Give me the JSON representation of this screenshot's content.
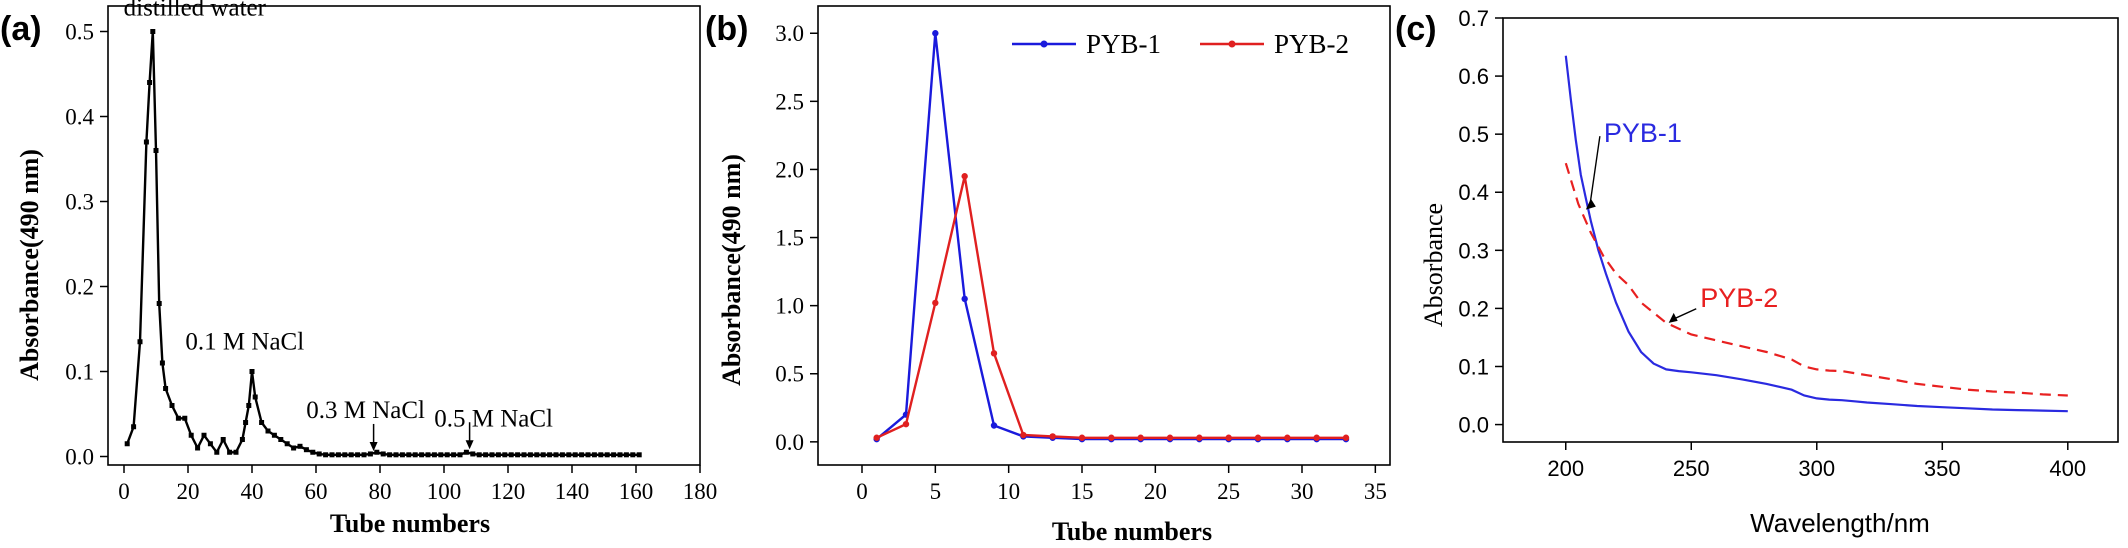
{
  "chart_data": [
    {
      "panel": "(a)",
      "type": "line",
      "xlabel": "Tube numbers",
      "ylabel": "Absorbance(490 nm)",
      "xlim": [
        -5,
        180
      ],
      "ylim": [
        -0.01,
        0.53
      ],
      "xticks": [
        0,
        20,
        40,
        60,
        80,
        100,
        120,
        140,
        160,
        180
      ],
      "yticks": [
        0.0,
        0.1,
        0.2,
        0.3,
        0.4,
        0.5
      ],
      "ytick_labels": [
        "0.0",
        "0.1",
        "0.2",
        "0.3",
        "0.4",
        "0.5"
      ],
      "color": "#000000",
      "series": [
        {
          "x": [
            1,
            3,
            5,
            7,
            8,
            9,
            10,
            11,
            12,
            13,
            15,
            17,
            19,
            21,
            23,
            25,
            27,
            29,
            31,
            33,
            35,
            37,
            38,
            39,
            40,
            41,
            43,
            45,
            47,
            49,
            51,
            53,
            55,
            57,
            59,
            61,
            63,
            65,
            67,
            69,
            71,
            73,
            75,
            77,
            79,
            81,
            83,
            85,
            87,
            89,
            91,
            93,
            95,
            97,
            99,
            101,
            103,
            105,
            107,
            109,
            111,
            113,
            115,
            117,
            119,
            121,
            123,
            125,
            127,
            129,
            131,
            133,
            135,
            137,
            139,
            141,
            143,
            145,
            147,
            149,
            151,
            153,
            155,
            157,
            159,
            161
          ],
          "y": [
            0.015,
            0.035,
            0.135,
            0.37,
            0.44,
            0.5,
            0.36,
            0.18,
            0.11,
            0.08,
            0.06,
            0.045,
            0.045,
            0.025,
            0.01,
            0.025,
            0.015,
            0.005,
            0.02,
            0.005,
            0.005,
            0.02,
            0.04,
            0.06,
            0.1,
            0.07,
            0.04,
            0.03,
            0.025,
            0.02,
            0.015,
            0.01,
            0.012,
            0.008,
            0.005,
            0.003,
            0.002,
            0.002,
            0.002,
            0.002,
            0.002,
            0.002,
            0.002,
            0.003,
            0.005,
            0.003,
            0.002,
            0.002,
            0.002,
            0.002,
            0.002,
            0.002,
            0.002,
            0.002,
            0.002,
            0.002,
            0.002,
            0.002,
            0.005,
            0.003,
            0.002,
            0.002,
            0.002,
            0.002,
            0.002,
            0.002,
            0.002,
            0.002,
            0.002,
            0.002,
            0.002,
            0.002,
            0.002,
            0.002,
            0.002,
            0.002,
            0.002,
            0.002,
            0.002,
            0.002,
            0.002,
            0.002,
            0.002,
            0.002,
            0.002,
            0.002
          ]
        }
      ],
      "annotations": [
        {
          "text": "distilled water",
          "x": 9,
          "y": 0.5
        },
        {
          "text": "0.1 M NaCl",
          "x": 39,
          "y": 0.1
        },
        {
          "text": "0.3 M NaCl",
          "x": 78,
          "y": 0.003
        },
        {
          "text": "0.5 M NaCl",
          "x": 108,
          "y": 0.005
        }
      ]
    },
    {
      "panel": "(b)",
      "type": "line",
      "xlabel": "Tube numbers",
      "ylabel": "Absorbance(490 nm)",
      "xlim": [
        -3,
        36
      ],
      "ylim": [
        -0.17,
        3.2
      ],
      "xticks": [
        0,
        5,
        10,
        15,
        20,
        25,
        30,
        35
      ],
      "yticks": [
        0.0,
        0.5,
        1.0,
        1.5,
        2.0,
        2.5,
        3.0
      ],
      "ytick_labels": [
        "0.0",
        "0.5",
        "1.0",
        "1.5",
        "2.0",
        "2.5",
        "3.0"
      ],
      "legend": "top",
      "series": [
        {
          "name": "PYB-1",
          "color": "#1a1adc",
          "x": [
            1,
            3,
            5,
            7,
            9,
            11,
            13,
            15,
            17,
            19,
            21,
            23,
            25,
            27,
            29,
            31,
            33
          ],
          "y": [
            0.02,
            0.2,
            3.0,
            1.05,
            0.12,
            0.04,
            0.03,
            0.02,
            0.02,
            0.02,
            0.02,
            0.02,
            0.02,
            0.02,
            0.02,
            0.02,
            0.02
          ]
        },
        {
          "name": "PYB-2",
          "color": "#e02020",
          "x": [
            1,
            3,
            5,
            7,
            9,
            11,
            13,
            15,
            17,
            19,
            21,
            23,
            25,
            27,
            29,
            31,
            33
          ],
          "y": [
            0.03,
            0.13,
            1.02,
            1.95,
            0.65,
            0.05,
            0.04,
            0.03,
            0.03,
            0.03,
            0.03,
            0.03,
            0.03,
            0.03,
            0.03,
            0.03,
            0.03
          ]
        }
      ]
    },
    {
      "panel": "(c)",
      "type": "line",
      "xlabel": "Wavelength/nm",
      "ylabel": "Absorbance",
      "xlim": [
        175,
        420
      ],
      "ylim": [
        -0.03,
        0.7
      ],
      "xticks": [
        200,
        250,
        300,
        350,
        400
      ],
      "yticks": [
        0.0,
        0.1,
        0.2,
        0.3,
        0.4,
        0.5,
        0.6,
        0.7
      ],
      "ytick_labels": [
        "0.0",
        "0.1",
        "0.2",
        "0.3",
        "0.4",
        "0.5",
        "0.6",
        "0.7"
      ],
      "series": [
        {
          "name": "PYB-1",
          "color": "#2a2ae0",
          "dash": "solid",
          "x": [
            200,
            202,
            204,
            206,
            208,
            210,
            213,
            216,
            220,
            225,
            230,
            235,
            240,
            245,
            250,
            260,
            270,
            280,
            290,
            295,
            300,
            305,
            310,
            315,
            320,
            330,
            340,
            350,
            360,
            370,
            380,
            390,
            400
          ],
          "y": [
            0.635,
            0.56,
            0.49,
            0.43,
            0.39,
            0.35,
            0.3,
            0.26,
            0.21,
            0.16,
            0.125,
            0.105,
            0.095,
            0.092,
            0.09,
            0.085,
            0.078,
            0.07,
            0.06,
            0.05,
            0.045,
            0.043,
            0.042,
            0.04,
            0.038,
            0.035,
            0.032,
            0.03,
            0.028,
            0.026,
            0.025,
            0.024,
            0.023
          ]
        },
        {
          "name": "PYB-2",
          "color": "#e82020",
          "dash": "dashed",
          "x": [
            200,
            205,
            210,
            215,
            220,
            225,
            230,
            240,
            250,
            260,
            270,
            280,
            290,
            295,
            300,
            305,
            310,
            320,
            330,
            340,
            350,
            360,
            370,
            380,
            390,
            400
          ],
          "y": [
            0.45,
            0.38,
            0.33,
            0.29,
            0.26,
            0.24,
            0.21,
            0.175,
            0.155,
            0.145,
            0.135,
            0.125,
            0.112,
            0.1,
            0.095,
            0.093,
            0.092,
            0.085,
            0.078,
            0.07,
            0.065,
            0.06,
            0.057,
            0.055,
            0.052,
            0.05
          ]
        }
      ],
      "annotations": [
        {
          "text": "PYB-1",
          "x": 212,
          "y": 0.5
        },
        {
          "text": "PYB-2",
          "x": 248,
          "y": 0.22
        }
      ]
    }
  ]
}
